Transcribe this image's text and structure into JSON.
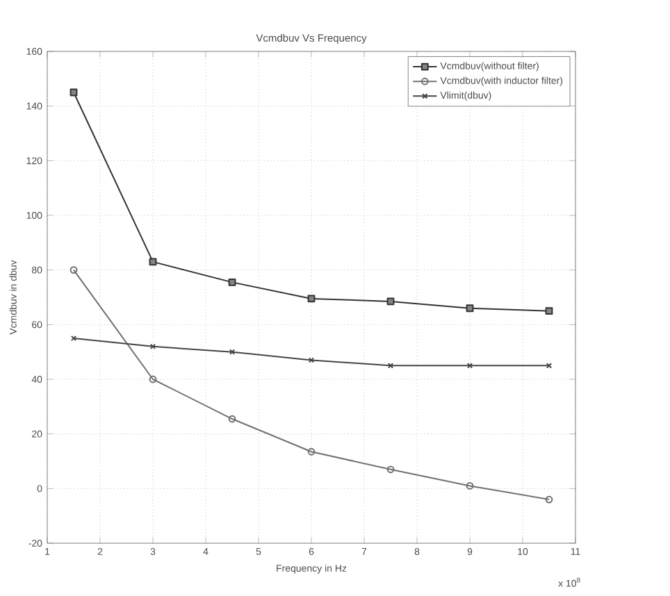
{
  "chart_data": {
    "type": "line",
    "title": "Vcmdbuv Vs Frequency",
    "xlabel": "Frequency in Hz",
    "ylabel": "Vcmdbuv in dbuv",
    "x": [
      1.5,
      3,
      4.5,
      6,
      7.5,
      9,
      10.5
    ],
    "series": [
      {
        "name": "Vcmdbuv(without filter)",
        "color": "#333333",
        "marker": "square",
        "values": [
          145,
          83,
          75.5,
          69.5,
          68.5,
          66,
          65
        ]
      },
      {
        "name": "Vcmdbuv(with inductor filter)",
        "color": "#707070",
        "marker": "circle",
        "values": [
          80,
          40,
          25.5,
          13.5,
          7,
          1,
          -4
        ]
      },
      {
        "name": "Vlimit(dbuv)",
        "color": "#444444",
        "marker": "cross",
        "values": [
          55,
          52,
          50,
          47,
          45,
          45,
          45
        ]
      }
    ],
    "xlim": [
      1,
      11
    ],
    "xticks": [
      1,
      2,
      3,
      4,
      5,
      6,
      7,
      8,
      9,
      10,
      11
    ],
    "ylim": [
      -20,
      160
    ],
    "yticks": [
      -20,
      0,
      20,
      40,
      60,
      80,
      100,
      120,
      140,
      160
    ],
    "annotations": [
      "x 10$^{8}$"
    ],
    "grid": true,
    "legend": "top right",
    "line_style": "solid"
  }
}
